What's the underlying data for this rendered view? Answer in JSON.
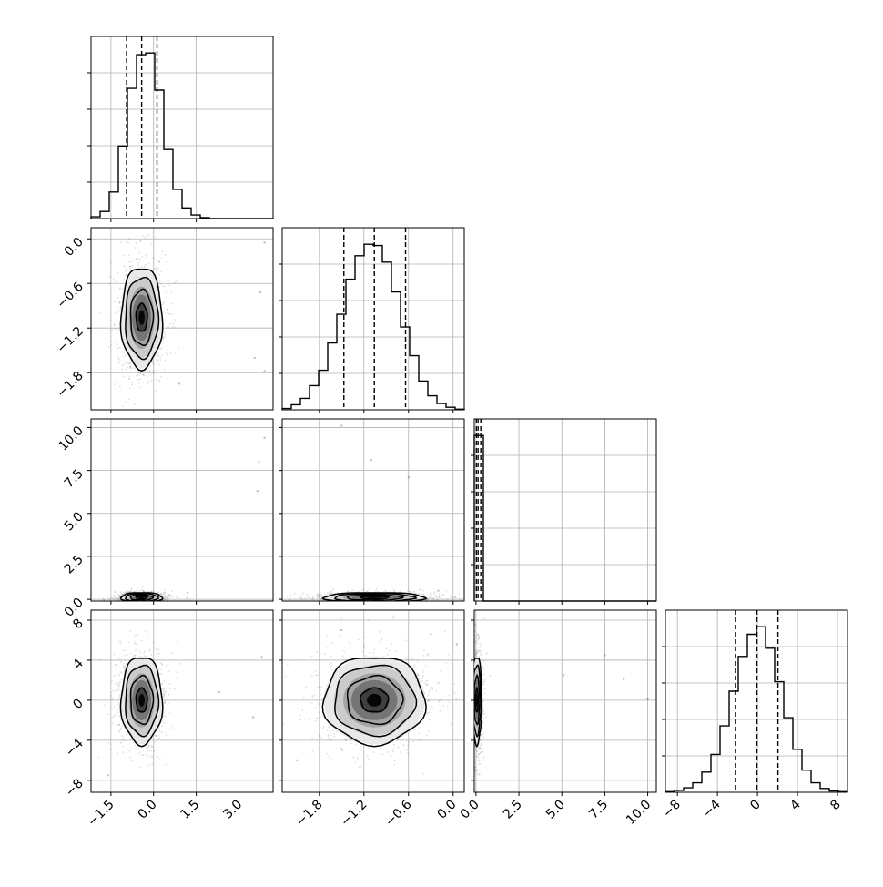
{
  "chart_data": {
    "type": "corner",
    "grid": true,
    "variables": [
      {
        "range": [
          -2.2,
          4.2
        ],
        "ticks": [
          "−1.5",
          "0.0",
          "1.5",
          "3.0"
        ],
        "tick_values": [
          -1.5,
          0.0,
          1.5,
          3.0
        ]
      },
      {
        "range": [
          -2.3,
          0.15
        ],
        "ticks": [
          "−1.8",
          "−1.2",
          "−0.6",
          "0.0"
        ],
        "tick_values": [
          -1.8,
          -1.2,
          -0.6,
          0.0
        ]
      },
      {
        "range": [
          -0.1,
          10.5
        ],
        "ticks": [
          "0.0",
          "2.5",
          "5.0",
          "7.5",
          "10.0"
        ],
        "tick_values": [
          0.0,
          2.5,
          5.0,
          7.5,
          10.0
        ]
      },
      {
        "range": [
          -9.2,
          9.0
        ],
        "ticks": [
          "−8",
          "−4",
          "0",
          "4",
          "8"
        ],
        "tick_values": [
          -8,
          -4,
          0,
          4,
          8
        ]
      }
    ],
    "histograms": [
      {
        "bins": [
          -2.2,
          -1.88,
          -1.56,
          -1.24,
          -0.92,
          -0.6,
          -0.28,
          0.04,
          0.36,
          0.68,
          1.0,
          1.32,
          1.64,
          1.96,
          2.28,
          2.6,
          2.92,
          3.24,
          3.56,
          3.88,
          4.2
        ],
        "counts": [
          2,
          8,
          30,
          82,
          147,
          185,
          187,
          145,
          78,
          33,
          12,
          4,
          1,
          0,
          0,
          0,
          0,
          0,
          0,
          0
        ],
        "quantiles": [
          -0.95,
          -0.42,
          0.12
        ]
      },
      {
        "bins": [
          -2.3,
          -2.1775,
          -2.055,
          -1.9325,
          -1.81,
          -1.6875,
          -1.565,
          -1.4425,
          -1.32,
          -1.1975,
          -1.075,
          -0.9525,
          -0.83,
          -0.7075,
          -0.585,
          -0.4625,
          -0.34,
          -0.2175,
          -0.095,
          0.0275,
          0.15
        ],
        "counts": [
          2,
          8,
          18,
          38,
          62,
          105,
          150,
          205,
          242,
          260,
          258,
          232,
          185,
          130,
          85,
          45,
          22,
          10,
          4,
          1
        ],
        "quantiles": [
          -1.47,
          -1.06,
          -0.64
        ]
      },
      {
        "bins": [
          -0.1,
          0.43,
          0.96,
          1.49,
          2.02,
          2.55,
          3.08,
          3.61,
          4.14,
          4.67,
          5.2,
          5.73,
          6.26,
          6.79,
          7.32,
          7.85,
          8.38,
          8.91,
          9.44,
          9.97,
          10.5
        ],
        "counts": [
          780,
          0,
          0,
          0,
          0,
          0,
          0,
          0,
          0,
          0,
          0,
          0,
          0,
          0,
          0,
          0,
          0,
          0,
          0,
          0
        ],
        "quantiles": [
          0.02,
          0.12,
          0.28
        ]
      },
      {
        "bins": [
          -9.2,
          -8.29,
          -7.38,
          -6.47,
          -5.56,
          -4.65,
          -3.74,
          -2.83,
          -1.92,
          -1.01,
          -0.1,
          0.81,
          1.72,
          2.63,
          3.54,
          4.45,
          5.36,
          6.27,
          7.18,
          8.09,
          9.0
        ],
        "counts": [
          1,
          3,
          7,
          15,
          32,
          60,
          105,
          160,
          215,
          250,
          262,
          228,
          175,
          118,
          68,
          35,
          15,
          6,
          2,
          1
        ],
        "quantiles": [
          -2.2,
          -0.05,
          2.05
        ]
      }
    ],
    "pairs": [
      {
        "x": 0,
        "y": 1,
        "center": [
          -0.42,
          -1.06
        ],
        "sigma": [
          0.33,
          0.31
        ],
        "outliers": [
          [
            3.9,
            -0.05
          ],
          [
            3.75,
            -0.72
          ],
          [
            3.55,
            -1.6
          ],
          [
            3.9,
            -1.78
          ],
          [
            0.9,
            -1.95
          ]
        ]
      },
      {
        "x": 0,
        "y": 2,
        "center": [
          -0.42,
          0.1
        ],
        "sigma": [
          0.33,
          0.07
        ],
        "outliers": [
          [
            3.9,
            9.4
          ],
          [
            3.7,
            8.0
          ],
          [
            3.65,
            6.3
          ],
          [
            1.2,
            0.4
          ]
        ]
      },
      {
        "x": 1,
        "y": 2,
        "center": [
          -1.06,
          0.1
        ],
        "sigma": [
          0.31,
          0.07
        ],
        "outliers": [
          [
            -1.5,
            10.1
          ],
          [
            -1.1,
            8.1
          ],
          [
            -0.6,
            7.1
          ],
          [
            -0.2,
            0.5
          ]
        ]
      },
      {
        "x": 0,
        "y": 3,
        "center": [
          -0.42,
          0.0
        ],
        "sigma": [
          0.33,
          2.0
        ],
        "outliers": [
          [
            3.8,
            4.3
          ],
          [
            3.5,
            -1.7
          ],
          [
            2.3,
            0.8
          ],
          [
            -1.6,
            -7.5
          ]
        ]
      },
      {
        "x": 1,
        "y": 3,
        "center": [
          -1.06,
          0.0
        ],
        "sigma": [
          0.31,
          2.0
        ],
        "outliers": [
          [
            -1.5,
            7.0
          ],
          [
            -0.3,
            6.6
          ],
          [
            0.05,
            5.6
          ],
          [
            -2.1,
            -6.0
          ]
        ]
      },
      {
        "x": 2,
        "y": 3,
        "center": [
          0.05,
          0.0
        ],
        "sigma": [
          0.05,
          2.0
        ],
        "outliers": [
          [
            7.5,
            4.5
          ],
          [
            5.1,
            2.5
          ],
          [
            10.0,
            0.1
          ],
          [
            8.6,
            2.1
          ]
        ]
      }
    ]
  }
}
